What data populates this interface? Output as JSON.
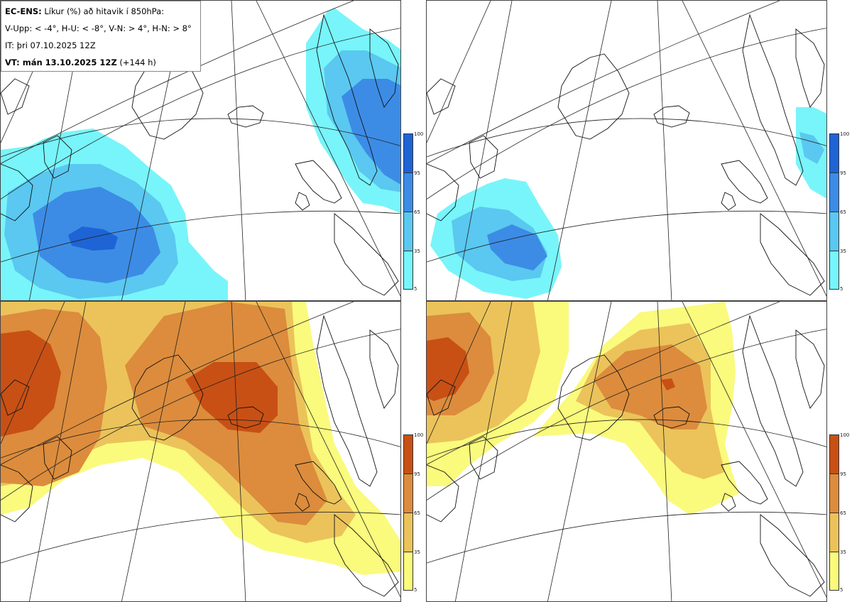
{
  "info": {
    "line1_bold": "EC-ENS:",
    "line1_rest": "Líkur (%) að hitavik í 850hPa:",
    "line2": "V-Upp: < -4°, H-U: < -8°, V-N: > 4°, H-N: > 8°",
    "line3": "IT: þri 07.10.2025 12Z",
    "line4_bold": "VT: mán 13.10.2025 12Z",
    "line4_rest": "(+144 h)"
  },
  "panels": [
    {
      "name": "V-Upp",
      "scale": "cold",
      "max_probability": 100
    },
    {
      "name": "H-U",
      "scale": "cold",
      "max_probability": 95
    },
    {
      "name": "V-N",
      "scale": "warm",
      "max_probability": 100
    },
    {
      "name": "H-N",
      "scale": "warm",
      "max_probability": 100
    }
  ],
  "colorbar": {
    "ticks": [
      "100",
      "95",
      "65",
      "35",
      "5"
    ],
    "cold_colors": [
      "#1e64d4",
      "#3c8ce6",
      "#5ac8f0",
      "#78f5fa"
    ],
    "warm_colors": [
      "#c85014",
      "#dc8c3c",
      "#ebc35a",
      "#fafa7d"
    ]
  }
}
